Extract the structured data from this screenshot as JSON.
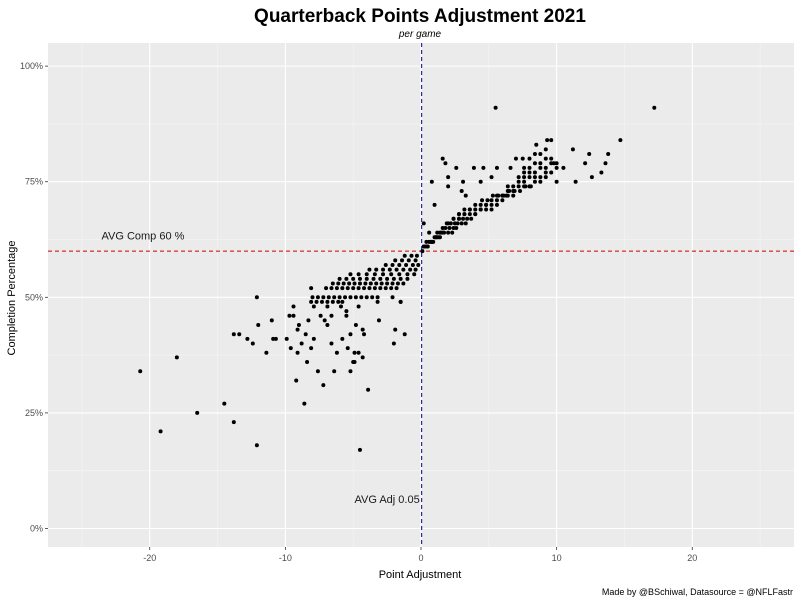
{
  "chart_data": {
    "type": "scatter",
    "title": "Quarterback Points Adjustment 2021",
    "subtitle": "per game",
    "xlabel": "Point Adjustment",
    "ylabel": "Completion Percentage",
    "xlim": [
      -27.5,
      27.5
    ],
    "ylim": [
      -0.04,
      1.05
    ],
    "xticks": [
      -20,
      -10,
      0,
      10,
      20
    ],
    "xtick_labels": [
      "-20",
      "-10",
      "0",
      "10",
      "20"
    ],
    "yticks": [
      0,
      0.25,
      0.5,
      0.75,
      1.0
    ],
    "ytick_labels": [
      "0%",
      "25%",
      "50%",
      "75%",
      "100%"
    ],
    "grid": true,
    "background": "#ebebeb",
    "point_color": "#000000",
    "reference_lines": [
      {
        "orientation": "vertical",
        "value": 0.05,
        "color": "#00008b",
        "style": "dashed"
      },
      {
        "orientation": "horizontal",
        "value": 0.6,
        "color": "#cc0000",
        "style": "dashed"
      }
    ],
    "annotations": [
      {
        "text": "AVG Comp 60 %",
        "x": -20.5,
        "y": 0.625
      },
      {
        "text": "AVG Adj 0.05",
        "x": -2.5,
        "y": 0.055
      }
    ],
    "caption": "Made by @BSchiwal, Datasource = @NFLFastr",
    "x": [
      -20.7,
      -19.2,
      -18,
      -16.5,
      -14.5,
      -13.8,
      -12.1,
      -13.8,
      -13.4,
      -12.8,
      -12.4,
      -12.1,
      -12,
      -11.4,
      -11.0,
      -10.9,
      -10.7,
      -9.7,
      -9.4,
      -9.9,
      -9.6,
      -9.2,
      -9.0,
      -9.4,
      -9.1,
      -8.6,
      -9.1,
      -8.8,
      -8.4,
      -8.1,
      -8.5,
      -8.3,
      -7.9,
      -7.6,
      -7.2,
      -7.9,
      -7.4,
      -6.9,
      -6.6,
      -6.2,
      -6.4,
      -5.9,
      -5.5,
      -5.2,
      -5.8,
      -5.4,
      -5.0,
      -4.6,
      -4.3,
      -8.1,
      -7.7,
      -7.3,
      -6.9,
      -6.5,
      -6.1,
      -5.8,
      -8.0,
      -7.6,
      -7.2,
      -6.8,
      -6.4,
      -6.0,
      -5.6,
      -5.2,
      -4.8,
      -4.4,
      -4.0,
      -3.6,
      -3.2,
      -7.0,
      -6.6,
      -6.2,
      -5.8,
      -5.4,
      -5.0,
      -4.6,
      -4.2,
      -3.8,
      -3.4,
      -3.0,
      -2.6,
      -2.2,
      -1.8,
      -6.5,
      -6.1,
      -5.7,
      -5.3,
      -4.9,
      -4.5,
      -4.1,
      -3.7,
      -3.3,
      -2.9,
      -2.5,
      -2.1,
      -1.7,
      -1.3,
      -6.0,
      -5.5,
      -5.0,
      -4.5,
      -4.0,
      -3.5,
      -3.0,
      -2.5,
      -2.0,
      -1.5,
      -1.0,
      -5.2,
      -4.6,
      -4.0,
      -3.4,
      -2.8,
      -2.2,
      -1.6,
      -1.0,
      -0.5,
      -3.8,
      -3.3,
      -2.8,
      -2.3,
      -1.8,
      -1.3,
      -0.8,
      -0.4,
      -2.6,
      -2.1,
      -1.6,
      -1.1,
      -0.6,
      -0.2,
      -1.9,
      -1.4,
      -0.9,
      -0.4,
      -1.2,
      -0.7,
      -0.3,
      -5.5,
      -4.8,
      -4.2,
      -3.2,
      -2.1,
      -1.5,
      -4.6,
      -5.2,
      -4.9,
      -6.6,
      -6.9,
      -8.1,
      -7.1,
      -4.9,
      -4.3,
      -3.1,
      -1.2,
      -2.0,
      -1.9,
      -1.5,
      -3.9,
      -4.5,
      0.1,
      0.3,
      0.5,
      0.7,
      0.9,
      1.1,
      1.3,
      0.2,
      0.4,
      0.6,
      0.8,
      1.0,
      1.2,
      1.4,
      1.6,
      0.8,
      1.1,
      1.4,
      1.7,
      2.0,
      2.3,
      2.6,
      1.2,
      1.5,
      1.8,
      2.1,
      2.4,
      2.7,
      3.0,
      3.3,
      1.6,
      1.9,
      2.2,
      2.5,
      2.8,
      3.1,
      3.4,
      3.7,
      4.0,
      2.0,
      2.4,
      2.8,
      3.2,
      3.6,
      4.0,
      4.4,
      4.8,
      5.2,
      2.4,
      2.8,
      3.2,
      3.6,
      4.0,
      4.4,
      4.8,
      5.2,
      5.6,
      6.0,
      2.8,
      3.2,
      3.6,
      4.0,
      4.4,
      4.8,
      5.2,
      5.6,
      6.0,
      6.4,
      6.8,
      4.5,
      4.9,
      5.3,
      5.7,
      6.1,
      6.5,
      6.9,
      7.3,
      7.7,
      8.1,
      5.6,
      6.0,
      6.4,
      6.8,
      7.2,
      7.6,
      8.0,
      8.4,
      8.8,
      9.2,
      6.4,
      6.8,
      7.2,
      7.6,
      8.0,
      8.4,
      8.8,
      9.2,
      9.6,
      10.0,
      7.2,
      7.6,
      8.0,
      8.4,
      8.8,
      9.2,
      9.6,
      10.0,
      7.6,
      8.0,
      8.4,
      8.8,
      9.2,
      9.6,
      8.0,
      8.4,
      8.8,
      9.2,
      0.8,
      1.6,
      2.0,
      2.6,
      3.0,
      3.1,
      3.9,
      4.6,
      5.2,
      5.6,
      6.3,
      6.6,
      7.0,
      7.5,
      7.6,
      8.5,
      9.3,
      9.8,
      10.0,
      10.5,
      11.2,
      11.4,
      12.1,
      12.4,
      12.6,
      13.3,
      13.6,
      13.8,
      14.7,
      17.2,
      5.5,
      9.6,
      0.4,
      0.6,
      0.2,
      1.0,
      3.3,
      2.0,
      1.8,
      4.4
    ],
    "y": [
      0.34,
      0.21,
      0.37,
      0.25,
      0.27,
      0.23,
      0.18,
      0.42,
      0.42,
      0.41,
      0.4,
      0.5,
      0.44,
      0.38,
      0.45,
      0.41,
      0.41,
      0.46,
      0.46,
      0.41,
      0.39,
      0.32,
      0.44,
      0.48,
      0.43,
      0.27,
      0.38,
      0.4,
      0.36,
      0.39,
      0.42,
      0.45,
      0.41,
      0.34,
      0.31,
      0.48,
      0.46,
      0.44,
      0.4,
      0.38,
      0.34,
      0.48,
      0.47,
      0.42,
      0.41,
      0.39,
      0.36,
      0.38,
      0.37,
      0.49,
      0.49,
      0.49,
      0.49,
      0.49,
      0.49,
      0.49,
      0.5,
      0.5,
      0.5,
      0.5,
      0.5,
      0.5,
      0.5,
      0.5,
      0.5,
      0.5,
      0.5,
      0.5,
      0.5,
      0.52,
      0.52,
      0.52,
      0.52,
      0.52,
      0.52,
      0.52,
      0.52,
      0.52,
      0.52,
      0.52,
      0.52,
      0.52,
      0.52,
      0.53,
      0.53,
      0.53,
      0.53,
      0.53,
      0.53,
      0.53,
      0.53,
      0.53,
      0.53,
      0.53,
      0.53,
      0.53,
      0.53,
      0.54,
      0.54,
      0.54,
      0.54,
      0.54,
      0.54,
      0.54,
      0.54,
      0.54,
      0.54,
      0.54,
      0.55,
      0.55,
      0.55,
      0.55,
      0.55,
      0.55,
      0.55,
      0.55,
      0.55,
      0.56,
      0.56,
      0.56,
      0.56,
      0.56,
      0.56,
      0.56,
      0.56,
      0.57,
      0.57,
      0.57,
      0.57,
      0.57,
      0.57,
      0.58,
      0.58,
      0.58,
      0.58,
      0.59,
      0.59,
      0.59,
      0.46,
      0.44,
      0.42,
      0.49,
      0.5,
      0.49,
      0.48,
      0.34,
      0.38,
      0.46,
      0.48,
      0.52,
      0.45,
      0.36,
      0.43,
      0.45,
      0.42,
      0.4,
      0.43,
      0.49,
      0.3,
      0.17,
      0.6,
      0.61,
      0.61,
      0.62,
      0.62,
      0.63,
      0.63,
      0.61,
      0.62,
      0.62,
      0.62,
      0.63,
      0.63,
      0.64,
      0.64,
      0.62,
      0.63,
      0.63,
      0.64,
      0.64,
      0.64,
      0.65,
      0.64,
      0.64,
      0.65,
      0.65,
      0.65,
      0.66,
      0.66,
      0.66,
      0.65,
      0.66,
      0.66,
      0.66,
      0.67,
      0.67,
      0.67,
      0.67,
      0.68,
      0.66,
      0.67,
      0.67,
      0.68,
      0.68,
      0.68,
      0.69,
      0.69,
      0.69,
      0.67,
      0.68,
      0.68,
      0.69,
      0.69,
      0.69,
      0.7,
      0.7,
      0.7,
      0.71,
      0.68,
      0.69,
      0.69,
      0.7,
      0.7,
      0.7,
      0.71,
      0.71,
      0.72,
      0.72,
      0.72,
      0.71,
      0.71,
      0.72,
      0.72,
      0.72,
      0.73,
      0.73,
      0.73,
      0.74,
      0.74,
      0.72,
      0.72,
      0.73,
      0.73,
      0.74,
      0.74,
      0.74,
      0.75,
      0.75,
      0.76,
      0.74,
      0.74,
      0.75,
      0.75,
      0.76,
      0.76,
      0.76,
      0.77,
      0.77,
      0.78,
      0.76,
      0.76,
      0.77,
      0.77,
      0.78,
      0.78,
      0.79,
      0.79,
      0.78,
      0.78,
      0.79,
      0.79,
      0.8,
      0.8,
      0.8,
      0.81,
      0.81,
      0.82,
      0.75,
      0.8,
      0.74,
      0.78,
      0.73,
      0.75,
      0.78,
      0.78,
      0.76,
      0.78,
      0.72,
      0.78,
      0.8,
      0.8,
      0.77,
      0.83,
      0.84,
      0.79,
      0.75,
      0.78,
      0.82,
      0.75,
      0.79,
      0.81,
      0.76,
      0.77,
      0.79,
      0.81,
      0.84,
      0.91,
      0.91,
      0.84,
      0.61,
      0.64,
      0.66,
      0.7,
      0.72,
      0.76,
      0.79,
      0.75
    ]
  }
}
